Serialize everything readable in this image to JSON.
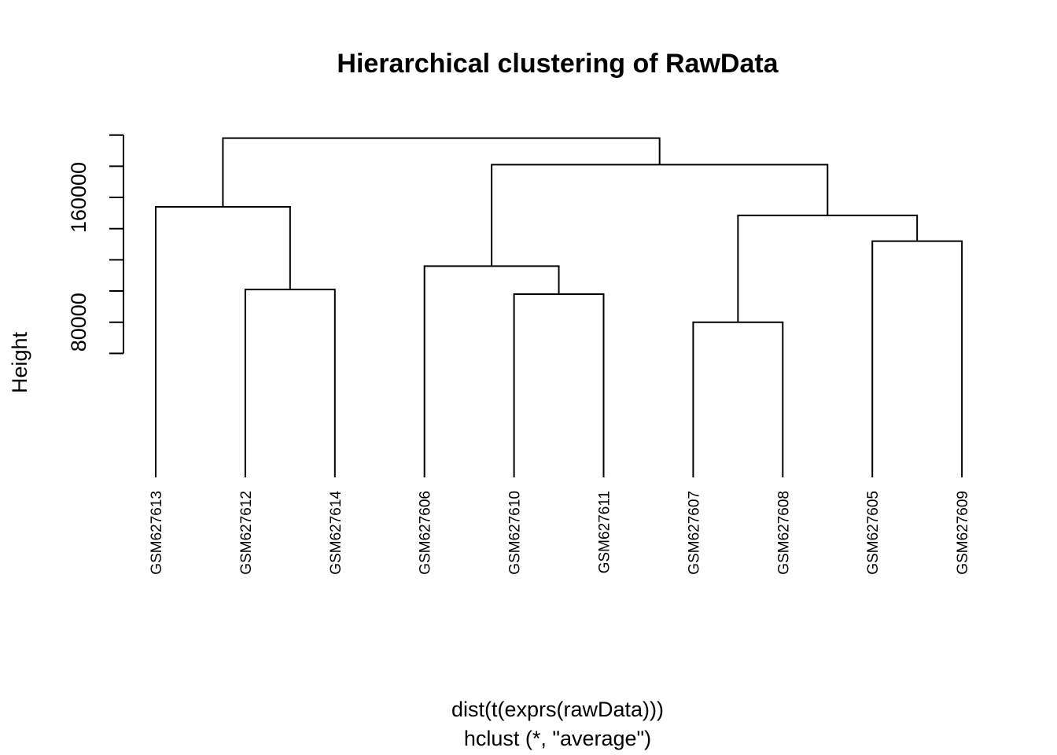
{
  "chart_data": {
    "type": "dendrogram",
    "title": "Hierarchical clustering of RawData",
    "ylabel": "Height",
    "xlabel": "dist(t(exprs(rawData)))",
    "sublabel": "hclust (*, \"average\")",
    "yticks": [
      {
        "value": 60000,
        "label": ""
      },
      {
        "value": 80000,
        "label": "80000"
      },
      {
        "value": 100000,
        "label": ""
      },
      {
        "value": 120000,
        "label": ""
      },
      {
        "value": 140000,
        "label": ""
      },
      {
        "value": 160000,
        "label": "160000"
      },
      {
        "value": 180000,
        "label": ""
      },
      {
        "value": 200000,
        "label": ""
      }
    ],
    "leaves": [
      "GSM627613",
      "GSM627612",
      "GSM627614",
      "GSM627606",
      "GSM627610",
      "GSM627611",
      "GSM627607",
      "GSM627608",
      "GSM627605",
      "GSM627609"
    ],
    "merges": [
      {
        "left": "GSM627607",
        "right": "GSM627608",
        "height": 80000
      },
      {
        "left": "GSM627610",
        "right": "GSM627611",
        "height": 98000
      },
      {
        "left": "GSM627612",
        "right": "GSM627614",
        "height": 101000
      },
      {
        "left": "GSM627606",
        "right": [
          1
        ],
        "height": 116000
      },
      {
        "left": "GSM627605",
        "right": "GSM627609",
        "height": 132000
      },
      {
        "left": [
          0
        ],
        "right": [
          4
        ],
        "height": 148500
      },
      {
        "left": "GSM627613",
        "right": [
          2
        ],
        "height": 154000
      },
      {
        "left": [
          3
        ],
        "right": [
          5
        ],
        "height": 181000
      },
      {
        "left": [
          6
        ],
        "right": [
          7
        ],
        "height": 198000
      }
    ]
  }
}
